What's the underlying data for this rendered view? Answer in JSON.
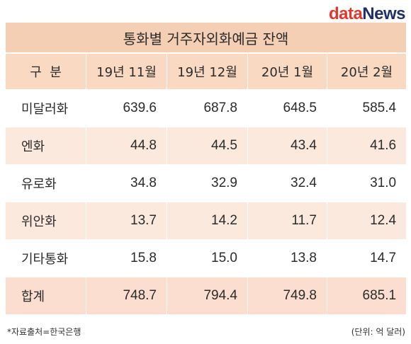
{
  "logo": {
    "part1": "data",
    "part2": "News"
  },
  "title": "통화별 거주자외화예금 잔액",
  "columns": [
    "구  분",
    "19년 11월",
    "19년 12월",
    "20년 1월",
    "20년 2월"
  ],
  "rows": [
    {
      "label": "미달러화",
      "values": [
        "639.6",
        "687.8",
        "648.5",
        "585.4"
      ]
    },
    {
      "label": "엔화",
      "values": [
        "44.8",
        "44.5",
        "43.4",
        "41.6"
      ]
    },
    {
      "label": "유로화",
      "values": [
        "34.8",
        "32.9",
        "32.4",
        "31.0"
      ]
    },
    {
      "label": "위안화",
      "values": [
        "13.7",
        "14.2",
        "11.7",
        "12.4"
      ]
    },
    {
      "label": "기타통화",
      "values": [
        "15.8",
        "15.0",
        "13.8",
        "14.7"
      ]
    },
    {
      "label": "합계",
      "values": [
        "748.7",
        "794.4",
        "749.8",
        "685.1"
      ]
    }
  ],
  "source_note": "*자료출처=한국은행",
  "unit_note": "(단위: 억 달러)"
}
